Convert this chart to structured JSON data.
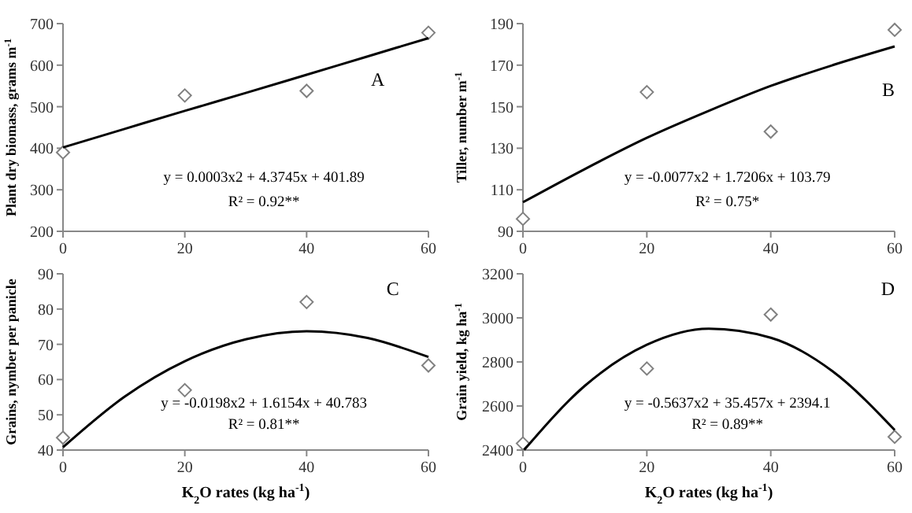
{
  "chart_data": [
    {
      "type": "scatter",
      "ylabel": "Plant dry biomass, grams m$^{-1}$",
      "xlim": [
        0,
        60
      ],
      "xticks": [
        0,
        20,
        40,
        60
      ],
      "ylim": [
        200,
        700
      ],
      "yticks": [
        200,
        300,
        400,
        500,
        600,
        700
      ],
      "marker": "diamond",
      "grid": false,
      "x": [
        0,
        20,
        40,
        60
      ],
      "series": [
        {
          "color": "#808080",
          "values": [
            390,
            527,
            538,
            678
          ]
        },
        {
          "type": "line",
          "marker": "none",
          "color": "#000000",
          "x": [
            0,
            10,
            20,
            30,
            40,
            50,
            60
          ],
          "values": [
            402,
            446,
            490,
            533,
            577,
            621,
            665
          ]
        }
      ],
      "annotations": [
        "A",
        "y = 0.0003x2 + 4.3745x + 401.89",
        "R² = 0.92**"
      ]
    },
    {
      "type": "scatter",
      "ylabel": "Tiller, number m$^{-1}$",
      "xlim": [
        0,
        60
      ],
      "xticks": [
        0,
        20,
        40,
        60
      ],
      "ylim": [
        90,
        190
      ],
      "yticks": [
        90,
        110,
        130,
        150,
        170,
        190
      ],
      "marker": "diamond",
      "grid": false,
      "x": [
        0,
        20,
        40,
        60
      ],
      "series": [
        {
          "color": "#808080",
          "values": [
            96,
            157,
            138,
            187
          ]
        },
        {
          "type": "line",
          "marker": "none",
          "color": "#000000",
          "x": [
            0,
            10,
            20,
            30,
            40,
            50,
            60
          ],
          "values": [
            104,
            120,
            135,
            148,
            160,
            170,
            179
          ]
        }
      ],
      "annotations": [
        "B",
        "y = -0.0077x2 + 1.7206x + 103.79",
        "R² = 0.75*"
      ]
    },
    {
      "type": "scatter",
      "xlabel": "K$_{2}$O rates (kg ha$^{-1}$)",
      "ylabel": "Grains, nymber per panicle",
      "xlim": [
        0,
        60
      ],
      "xticks": [
        0,
        20,
        40,
        60
      ],
      "ylim": [
        40,
        90
      ],
      "yticks": [
        40,
        50,
        60,
        70,
        80,
        90
      ],
      "marker": "diamond",
      "grid": false,
      "x": [
        0,
        20,
        40,
        60
      ],
      "series": [
        {
          "color": "#808080",
          "values": [
            43.5,
            57,
            82,
            64
          ]
        },
        {
          "type": "line",
          "marker": "none",
          "color": "#000000",
          "x": [
            0,
            10,
            20,
            30,
            40,
            50,
            60
          ],
          "values": [
            40.8,
            55,
            65.2,
            71.4,
            73.7,
            71.8,
            66.4
          ]
        }
      ],
      "annotations": [
        "C",
        "y = -0.0198x2 + 1.6154x + 40.783",
        "R² = 0.81**"
      ]
    },
    {
      "type": "scatter",
      "xlabel": "K$_{2}$O rates (kg ha$^{-1}$)",
      "ylabel": "Grain yield, kg ha$^{-1}$",
      "xlim": [
        0,
        60
      ],
      "xticks": [
        0,
        20,
        40,
        60
      ],
      "ylim": [
        2400,
        3200
      ],
      "yticks": [
        2400,
        2600,
        2800,
        3000,
        3200
      ],
      "marker": "diamond",
      "grid": false,
      "x": [
        0,
        20,
        40,
        60
      ],
      "series": [
        {
          "color": "#808080",
          "values": [
            2430,
            2770,
            3015,
            2460
          ]
        },
        {
          "type": "line",
          "marker": "none",
          "color": "#000000",
          "x": [
            0.2,
            10,
            20,
            30,
            40,
            50,
            60
          ],
          "values": [
            2401,
            2692,
            2878,
            2951,
            2910,
            2757,
            2491
          ]
        }
      ],
      "annotations": [
        "D",
        "y = -0.5637x2 + 35.457x + 2394.1",
        "R² = 0.89**"
      ]
    }
  ]
}
